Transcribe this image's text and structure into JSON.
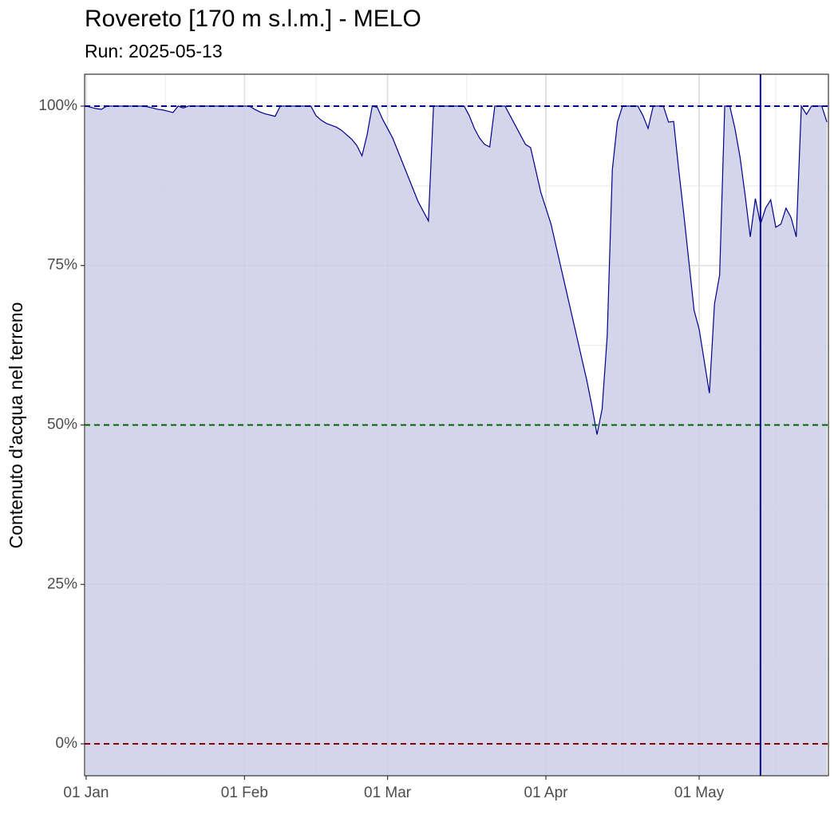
{
  "chart_data": {
    "type": "area",
    "title": "Rovereto [170 m s.l.m.] - MELO",
    "subtitle": "Run: 2025-05-13",
    "y_label": "Contenuto d'acqua nel terreno",
    "categories": [
      "01 Jan",
      "02 Jan",
      "03 Jan",
      "04 Jan",
      "05 Jan",
      "06 Jan",
      "07 Jan",
      "08 Jan",
      "09 Jan",
      "10 Jan",
      "11 Jan",
      "12 Jan",
      "13 Jan",
      "14 Jan",
      "15 Jan",
      "16 Jan",
      "17 Jan",
      "18 Jan",
      "19 Jan",
      "20 Jan",
      "21 Jan",
      "22 Jan",
      "23 Jan",
      "24 Jan",
      "25 Jan",
      "26 Jan",
      "27 Jan",
      "28 Jan",
      "29 Jan",
      "30 Jan",
      "31 Jan",
      "01 Feb",
      "02 Feb",
      "03 Feb",
      "04 Feb",
      "05 Feb",
      "06 Feb",
      "07 Feb",
      "08 Feb",
      "09 Feb",
      "10 Feb",
      "11 Feb",
      "12 Feb",
      "13 Feb",
      "14 Feb",
      "15 Feb",
      "16 Feb",
      "17 Feb",
      "18 Feb",
      "19 Feb",
      "20 Feb",
      "21 Feb",
      "22 Feb",
      "23 Feb",
      "24 Feb",
      "25 Feb",
      "26 Feb",
      "27 Feb",
      "28 Feb",
      "01 Mar",
      "02 Mar",
      "03 Mar",
      "04 Mar",
      "05 Mar",
      "06 Mar",
      "07 Mar",
      "08 Mar",
      "09 Mar",
      "10 Mar",
      "11 Mar",
      "12 Mar",
      "13 Mar",
      "14 Mar",
      "15 Mar",
      "16 Mar",
      "17 Mar",
      "18 Mar",
      "19 Mar",
      "20 Mar",
      "21 Mar",
      "22 Mar",
      "23 Mar",
      "24 Mar",
      "25 Mar",
      "26 Mar",
      "27 Mar",
      "28 Mar",
      "29 Mar",
      "30 Mar",
      "31 Mar",
      "01 Apr",
      "02 Apr",
      "03 Apr",
      "04 Apr",
      "05 Apr",
      "06 Apr",
      "07 Apr",
      "08 Apr",
      "09 Apr",
      "10 Apr",
      "11 Apr",
      "12 Apr",
      "13 Apr",
      "14 Apr",
      "15 Apr",
      "16 Apr",
      "17 Apr",
      "18 Apr",
      "19 Apr",
      "20 Apr",
      "21 Apr",
      "22 Apr",
      "23 Apr",
      "24 Apr",
      "25 Apr",
      "26 Apr",
      "27 Apr",
      "28 Apr",
      "29 Apr",
      "30 Apr",
      "01 May",
      "02 May",
      "03 May",
      "04 May",
      "05 May",
      "06 May",
      "07 May",
      "08 May",
      "09 May",
      "10 May",
      "11 May",
      "12 May",
      "13 May",
      "14 May",
      "15 May",
      "16 May",
      "17 May",
      "18 May",
      "19 May",
      "20 May",
      "21 May",
      "22 May",
      "23 May",
      "24 May",
      "25 May",
      "26 May"
    ],
    "values": [
      100,
      99.8,
      99.6,
      99.5,
      100,
      100,
      100,
      100,
      100,
      100,
      100,
      100,
      99.9,
      99.7,
      99.5,
      99.4,
      99.2,
      99.0,
      100,
      99.7,
      100,
      100,
      100,
      100,
      100,
      100,
      100,
      100,
      100,
      100,
      100,
      100,
      100,
      99.5,
      99.1,
      98.8,
      98.6,
      98.4,
      100,
      100,
      100,
      100,
      100,
      100,
      100,
      98.5,
      97.8,
      97.3,
      97.0,
      96.7,
      96.2,
      95.5,
      94.8,
      93.8,
      92.2,
      95.5,
      100,
      99.8,
      98,
      96.5,
      95,
      93,
      91,
      89,
      87,
      85,
      83.5,
      82,
      100,
      100,
      100,
      100,
      100,
      100,
      100,
      98.5,
      96.5,
      95,
      94,
      93.6,
      100,
      100,
      100,
      98.5,
      97,
      95.5,
      94,
      93.5,
      90,
      86.5,
      84,
      81.5,
      78,
      74.5,
      71,
      67.5,
      64,
      60.5,
      57,
      53,
      48.5,
      52.5,
      64,
      90,
      97.5,
      100,
      100,
      100,
      100,
      98.5,
      96.5,
      100,
      100,
      100,
      97.5,
      97.6,
      90,
      83,
      75.5,
      68,
      65,
      60,
      55,
      69,
      73.5,
      100,
      100,
      96.5,
      92,
      86,
      79.5,
      85.5,
      81.5,
      84,
      85.3,
      81,
      81.5,
      84,
      82.5,
      79.5,
      100,
      98.7,
      100,
      100,
      100,
      97.5
    ],
    "line_color": "#00008b",
    "fill_color": "#cccce8",
    "ylim": [
      -5,
      105
    ],
    "yticks": [
      {
        "value": 0,
        "label": "0%"
      },
      {
        "value": 25,
        "label": "25%"
      },
      {
        "value": 50,
        "label": "50%"
      },
      {
        "value": 75,
        "label": "75%"
      },
      {
        "value": 100,
        "label": "100%"
      }
    ],
    "xticks": [
      0,
      31,
      59,
      90,
      120
    ],
    "grid": true,
    "hlines": [
      {
        "value": 100,
        "color": "#00008b"
      },
      {
        "value": 50,
        "color": "#006400"
      },
      {
        "value": 0,
        "color": "#8b0000"
      }
    ],
    "vline": {
      "x": "13 May",
      "color": "#00008b"
    }
  }
}
